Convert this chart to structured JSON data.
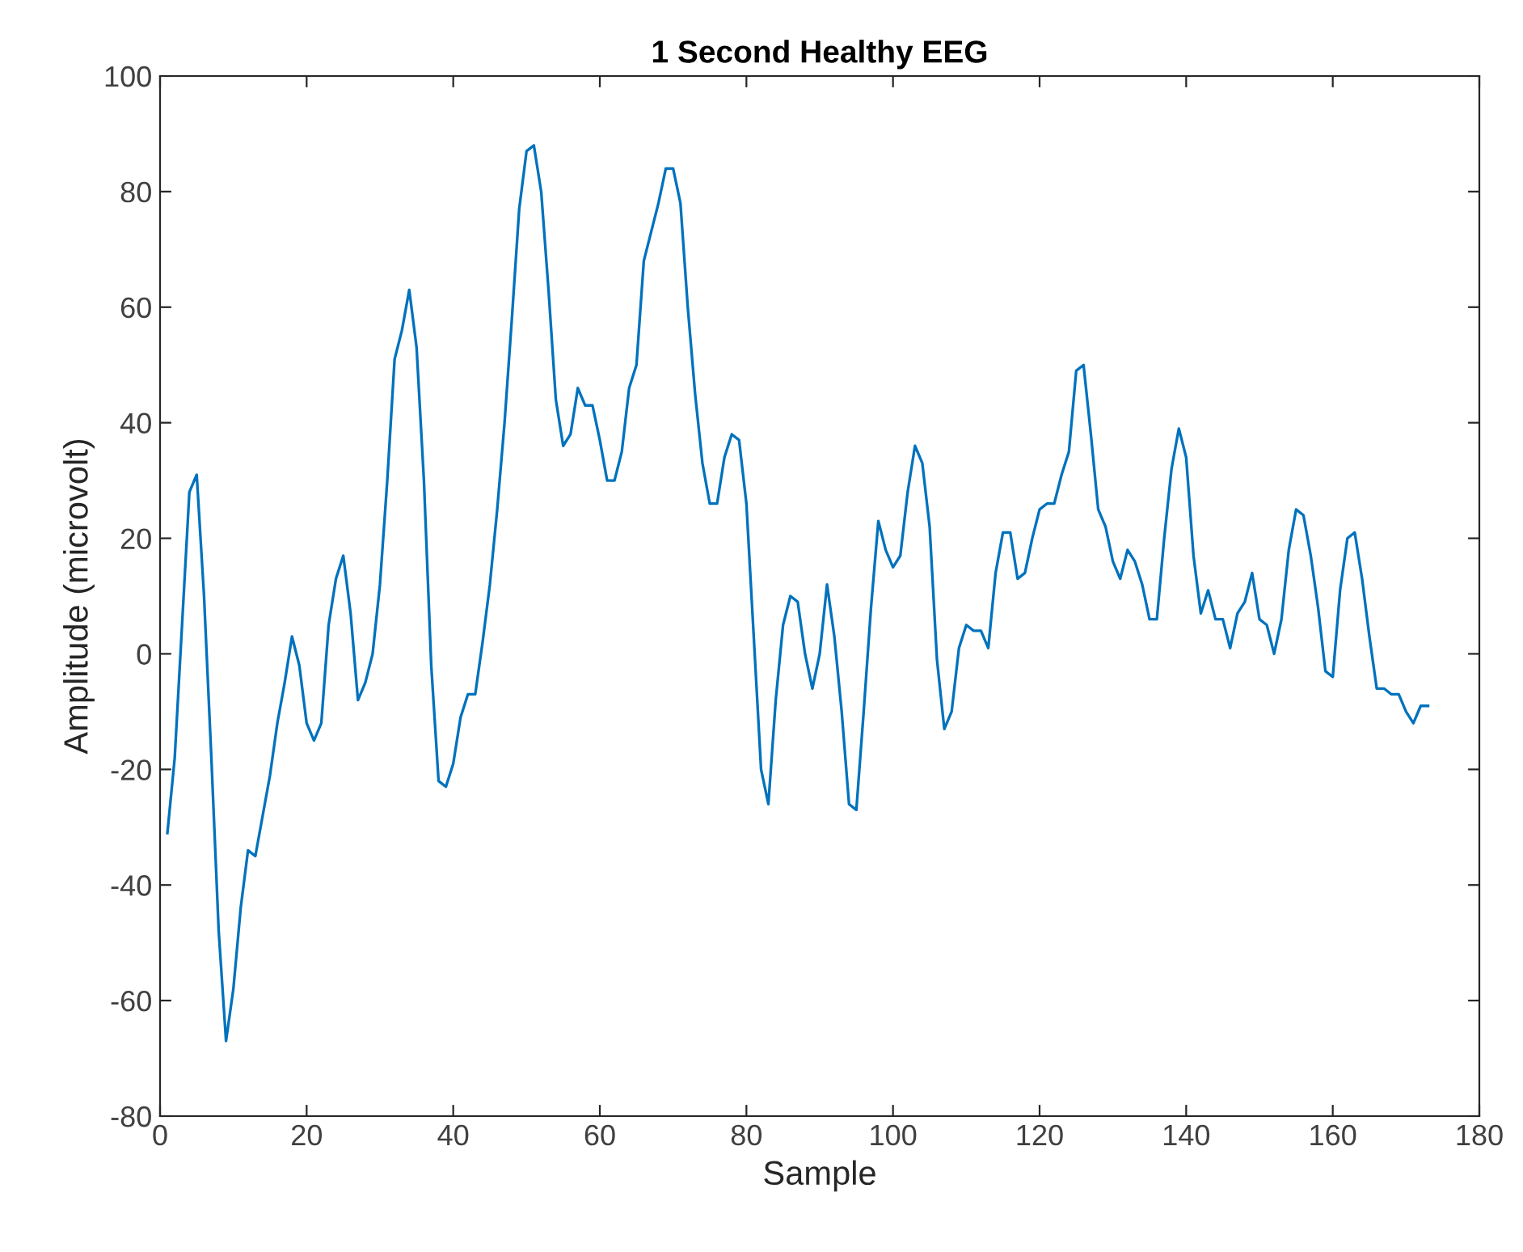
{
  "chart_data": {
    "type": "line",
    "title": "1 Second Healthy EEG",
    "xlabel": "Sample",
    "ylabel": "Amplitude (microvolt)",
    "x": [
      1,
      2,
      3,
      4,
      5,
      6,
      7,
      8,
      9,
      10,
      11,
      12,
      13,
      14,
      15,
      16,
      17,
      18,
      19,
      20,
      21,
      22,
      23,
      24,
      25,
      26,
      27,
      28,
      29,
      30,
      31,
      32,
      33,
      34,
      35,
      36,
      37,
      38,
      39,
      40,
      41,
      42,
      43,
      44,
      45,
      46,
      47,
      48,
      49,
      50,
      51,
      52,
      53,
      54,
      55,
      56,
      57,
      58,
      59,
      60,
      61,
      62,
      63,
      64,
      65,
      66,
      67,
      68,
      69,
      70,
      71,
      72,
      73,
      74,
      75,
      76,
      77,
      78,
      79,
      80,
      81,
      82,
      83,
      84,
      85,
      86,
      87,
      88,
      89,
      90,
      91,
      92,
      93,
      94,
      95,
      96,
      97,
      98,
      99,
      100,
      101,
      102,
      103,
      104,
      105,
      106,
      107,
      108,
      109,
      110,
      111,
      112,
      113,
      114,
      115,
      116,
      117,
      118,
      119,
      120,
      121,
      122,
      123,
      124,
      125,
      126,
      127,
      128,
      129,
      130,
      131,
      132,
      133,
      134,
      135,
      136,
      137,
      138,
      139,
      140,
      141,
      142,
      143,
      144,
      145,
      146,
      147,
      148,
      149,
      150,
      151,
      152,
      153,
      154,
      155,
      156,
      157,
      158,
      159,
      160,
      161,
      162,
      163,
      164,
      165,
      166,
      167,
      168,
      169,
      170,
      171,
      172,
      173
    ],
    "series": [
      {
        "color": "#0072bd",
        "values": [
          -31,
          -18,
          5,
          28,
          31,
          10,
          -18,
          -48,
          -67,
          -58,
          -44,
          -34,
          -35,
          -28,
          -21,
          -12,
          -5,
          3,
          -2,
          -12,
          -15,
          -12,
          5,
          13,
          17,
          7,
          -8,
          -5,
          0,
          12,
          30,
          51,
          56,
          63,
          53,
          30,
          -2,
          -22,
          -23,
          -19,
          -11,
          -7,
          -7,
          2,
          12,
          25,
          40,
          58,
          77,
          87,
          88,
          80,
          63,
          44,
          36,
          38,
          46,
          43,
          43,
          37,
          30,
          30,
          35,
          46,
          50,
          68,
          73,
          78,
          84,
          84,
          78,
          60,
          45,
          33,
          26,
          26,
          34,
          38,
          37,
          26,
          3,
          -20,
          -26,
          -8,
          5,
          10,
          9,
          0,
          -6,
          0,
          12,
          3,
          -10,
          -26,
          -27,
          -10,
          8,
          23,
          18,
          15,
          17,
          28,
          36,
          33,
          22,
          -1,
          -13,
          -10,
          1,
          5,
          4,
          4,
          1,
          14,
          21,
          21,
          13,
          14,
          20,
          25,
          26,
          26,
          31,
          35,
          49,
          50,
          38,
          25,
          22,
          16,
          13,
          18,
          16,
          12,
          6,
          6,
          20,
          32,
          39,
          34,
          17,
          7,
          11,
          6,
          6,
          1,
          7,
          9,
          14,
          6,
          5,
          0,
          6,
          18,
          25,
          24,
          17,
          8,
          -3,
          -4,
          11,
          20,
          21,
          13,
          3,
          -6,
          -6,
          -7,
          -7,
          -10,
          -12,
          -9,
          -9
        ]
      }
    ],
    "xlim": [
      0,
      180
    ],
    "xticks": [
      0,
      20,
      40,
      60,
      80,
      100,
      120,
      140,
      160,
      180
    ],
    "ylim": [
      -80,
      100
    ],
    "yticks": [
      -80,
      -60,
      -40,
      -20,
      0,
      20,
      40,
      60,
      80,
      100
    ],
    "grid": false,
    "legend": false,
    "marker": "none",
    "line_style": "solid"
  }
}
